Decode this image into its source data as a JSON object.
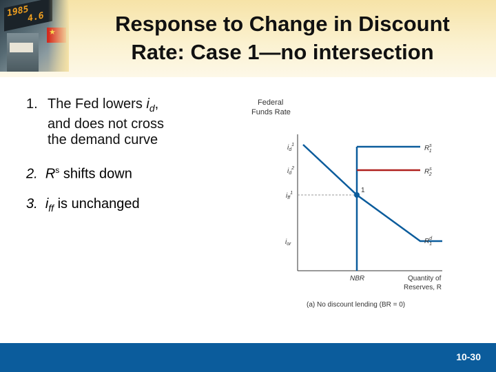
{
  "slide": {
    "title_line1": "Response to Change in Discount",
    "title_line2": "Rate: Case 1—no intersection",
    "page_number": "10-30"
  },
  "list": [
    {
      "number": "1.",
      "text_a": "The Fed lowers ",
      "var": "i",
      "sub": "d",
      "text_b": ",",
      "line2": "and does not cross",
      "line3": "the demand curve"
    },
    {
      "number": "2.",
      "var": "R",
      "sup": "s",
      "text": " shifts down"
    },
    {
      "number": "3.",
      "var": "i",
      "sub": "ff",
      "text": " is unchanged"
    }
  ],
  "diagram": {
    "yaxis_label_line1": "Federal",
    "yaxis_label_line2": "Funds Rate",
    "y_labels": [
      {
        "var": "i",
        "sub": "d",
        "sup": "1"
      },
      {
        "var": "i",
        "sub": "d",
        "sup": "2"
      },
      {
        "var": "i",
        "sub": "ff",
        "sup": "1"
      },
      {
        "var": "i",
        "sub": "or",
        "sup": ""
      }
    ],
    "curve_labels": [
      {
        "var": "R",
        "sup": "s",
        "sub": "1"
      },
      {
        "var": "R",
        "sup": "s",
        "sub": "2"
      },
      {
        "var": "R",
        "sup": "d",
        "sub": "1"
      }
    ],
    "point_label": "1",
    "nbr_label": "NBR",
    "xaxis_label_line1": "Quantity of",
    "xaxis_label_line2": "Reserves, R",
    "caption": "(a) No discount lending (BR = 0)",
    "colors": {
      "original_supply": "#0b5c9c",
      "new_supply": "#b0201e",
      "demand": "#0b5c9c",
      "axis": "#333333"
    }
  },
  "icons": {
    "header_photo": "stock-exchange-photo"
  }
}
